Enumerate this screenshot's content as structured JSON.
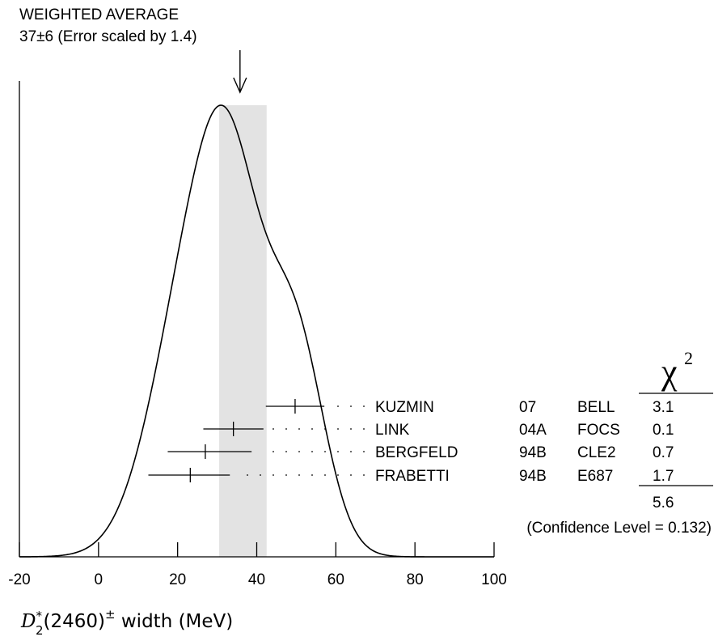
{
  "chart_data": {
    "type": "ideogram",
    "title": "WEIGHTED AVERAGE",
    "subtitle": "37±6 (Error scaled by 1.4)",
    "average": {
      "value": 37,
      "error": 6,
      "band": [
        30.5,
        42.5
      ]
    },
    "xlim": [
      -20,
      100
    ],
    "xticks": [
      -20,
      0,
      20,
      40,
      60,
      80,
      100
    ],
    "xlabel": {
      "symbol": "D",
      "sup": "*",
      "sub": "2",
      "rest": "(2460)",
      "charge": "±",
      "suffix": " width (MeV)"
    },
    "chi_header": {
      "symbol": "χ",
      "sup": "2"
    },
    "measurements": [
      {
        "author": "KUZMIN",
        "year": "07",
        "experiment": "BELL",
        "value": 49.7,
        "low": 42.3,
        "high": 57.1,
        "chi2": "3.1"
      },
      {
        "author": "LINK",
        "year": "04A",
        "experiment": "FOCS",
        "value": 34.1,
        "low": 26.5,
        "high": 41.7,
        "chi2": "0.1"
      },
      {
        "author": "BERGFELD",
        "year": "94B",
        "experiment": "CLE2",
        "value": 27.0,
        "low": 17.5,
        "high": 38.7,
        "chi2": "0.7"
      },
      {
        "author": "FRABETTI",
        "year": "94B",
        "experiment": "E687",
        "value": 23.2,
        "low": 12.6,
        "high": 33.2,
        "chi2": "1.7"
      }
    ],
    "chi2_total": "5.6",
    "confidence_level": "(Confidence Level = 0.132)"
  }
}
